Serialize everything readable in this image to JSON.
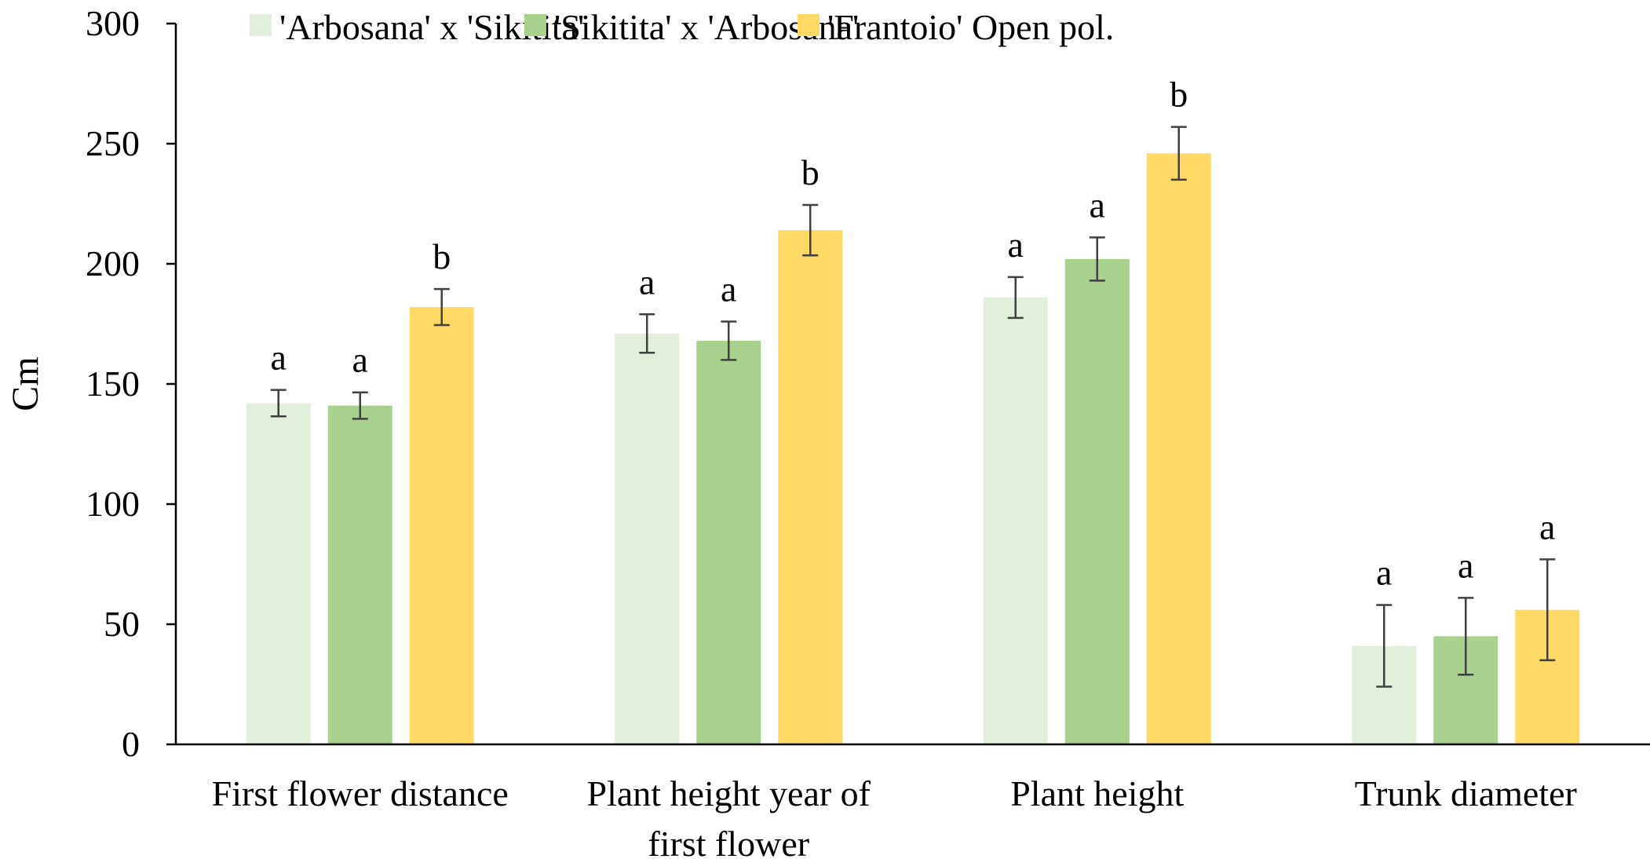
{
  "chart_data": {
    "type": "bar",
    "title": "",
    "xlabel": "",
    "ylabel": "Cm",
    "ylim": [
      0,
      300
    ],
    "yticks": [
      0,
      50,
      100,
      150,
      200,
      250,
      300
    ],
    "grid": false,
    "legend_position": "top",
    "categories": [
      [
        "First flower distance"
      ],
      [
        "Plant height year of",
        "first flower"
      ],
      [
        "Plant height"
      ],
      [
        "Trunk diameter"
      ]
    ],
    "series": [
      {
        "name": "'Arbosana' x 'Sikitita'",
        "color": "#e2efda",
        "values": [
          142,
          171,
          186,
          41
        ],
        "errors": [
          5.5,
          8,
          8.5,
          17
        ],
        "significance": [
          "a",
          "a",
          "a",
          "a"
        ]
      },
      {
        "name": "'Sikitita' x 'Arbosana'",
        "color": "#a9d18e",
        "values": [
          141,
          168,
          202,
          45
        ],
        "errors": [
          5.5,
          8,
          9,
          16
        ],
        "significance": [
          "a",
          "a",
          "a",
          "a"
        ]
      },
      {
        "name": "'Frantoio' Open pol.",
        "color": "#ffd966",
        "values": [
          182,
          214,
          246,
          56
        ],
        "errors": [
          7.5,
          10.5,
          11,
          21
        ],
        "significance": [
          "b",
          "b",
          "b",
          "a"
        ]
      }
    ]
  }
}
